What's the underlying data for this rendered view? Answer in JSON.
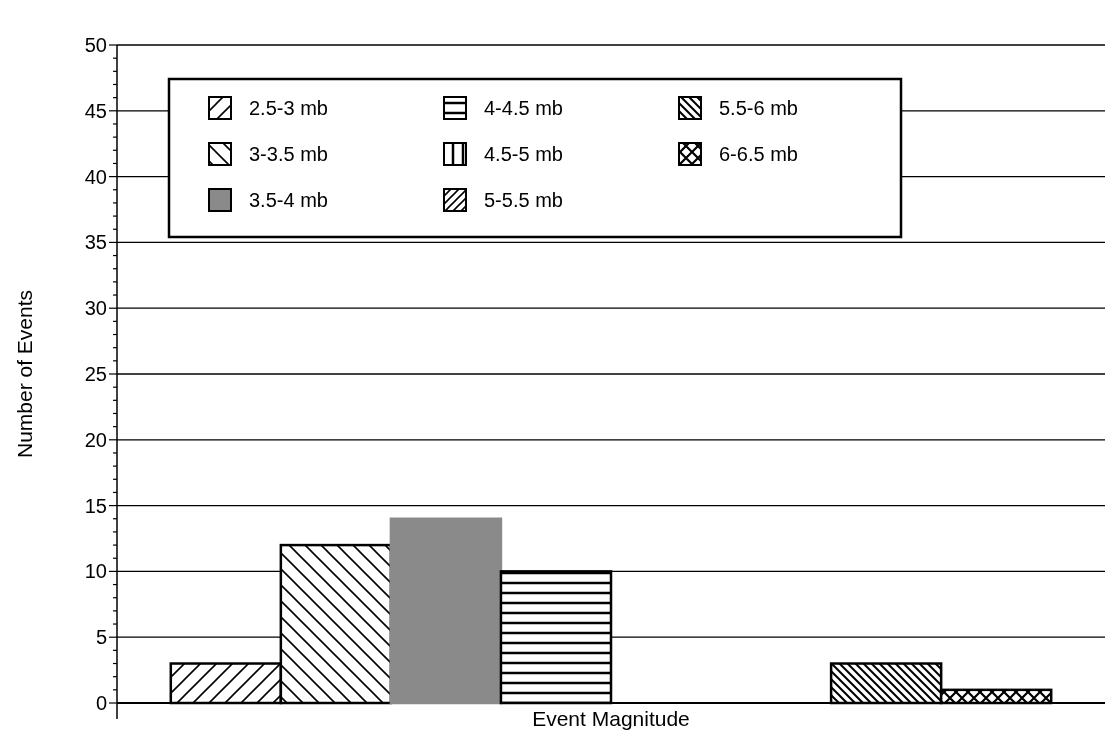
{
  "chart_data": {
    "type": "bar",
    "xlabel": "Event Magnitude",
    "ylabel": "Number of Events",
    "categories": [
      null
    ],
    "series": [
      {
        "name": "2.5-3 mb",
        "color": "#000000",
        "values": [
          3
        ]
      },
      {
        "name": "3-3.5 mb",
        "color": "#000000",
        "values": [
          12
        ]
      },
      {
        "name": "3.5-4 mb",
        "color": "#8a8a8a",
        "values": [
          14
        ]
      },
      {
        "name": "4-4.5 mb",
        "color": "#000000",
        "values": [
          10
        ]
      },
      {
        "name": "4.5-5 mb",
        "color": "#000000",
        "values": [
          0
        ]
      },
      {
        "name": "5-5.5 mb",
        "color": "#000000",
        "values": [
          0
        ]
      },
      {
        "name": "5.5-6 mb",
        "color": "#000000",
        "values": [
          3
        ]
      },
      {
        "name": "6-6.5 mb",
        "color": "#000000",
        "values": [
          1
        ]
      }
    ],
    "ylim": [
      0,
      50
    ],
    "yticks": [
      0,
      {
        "value": 1,
        "label": null
      },
      {
        "value": 2,
        "label": null
      },
      {
        "value": 3,
        "label": null
      },
      {
        "value": 4,
        "label": null
      },
      5,
      {
        "value": 6,
        "label": null
      },
      {
        "value": 7,
        "label": null
      },
      {
        "value": 8,
        "label": null
      },
      {
        "value": 9,
        "label": null
      },
      10,
      {
        "value": 11,
        "label": null
      },
      {
        "value": 12,
        "label": null
      },
      {
        "value": 13,
        "label": null
      },
      {
        "value": 14,
        "label": null
      },
      15,
      {
        "value": 16,
        "label": null
      },
      {
        "value": 17,
        "label": null
      },
      {
        "value": 18,
        "label": null
      },
      {
        "value": 19,
        "label": null
      },
      20,
      {
        "value": 21,
        "label": null
      },
      {
        "value": 22,
        "label": null
      },
      {
        "value": 23,
        "label": null
      },
      {
        "value": 24,
        "label": null
      },
      25,
      {
        "value": 26,
        "label": null
      },
      {
        "value": 27,
        "label": null
      },
      {
        "value": 28,
        "label": null
      },
      {
        "value": 29,
        "label": null
      },
      30,
      {
        "value": 31,
        "label": null
      },
      {
        "value": 32,
        "label": null
      },
      {
        "value": 33,
        "label": null
      },
      {
        "value": 34,
        "label": null
      },
      35,
      {
        "value": 36,
        "label": null
      },
      {
        "value": 37,
        "label": null
      },
      {
        "value": 38,
        "label": null
      },
      {
        "value": 39,
        "label": null
      },
      40,
      {
        "value": 41,
        "label": null
      },
      {
        "value": 42,
        "label": null
      },
      {
        "value": 43,
        "label": null
      },
      {
        "value": 44,
        "label": null
      },
      45,
      {
        "value": 46,
        "label": null
      },
      {
        "value": 47,
        "label": null
      },
      {
        "value": 48,
        "label": null
      },
      {
        "value": 49,
        "label": null
      },
      50
    ],
    "grid": "y",
    "legend": "top left"
  }
}
